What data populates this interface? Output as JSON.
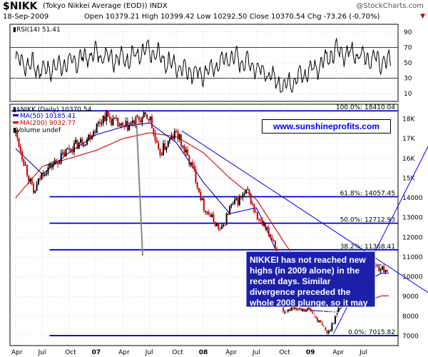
{
  "header": {
    "symbol": "$NIKK",
    "full_name": "(Tokyo Nikkei Average (EOD)) INDX",
    "date": "18-Sep-2009",
    "quote": "Open 10379.21  High 10399.42  Low 10292.50  Close 10370.54  Chg -73.26 (-0.70%)",
    "credit": "@StockCharts.com",
    "change_arrow": "▼"
  },
  "colors": {
    "price_up": "#000000",
    "price_down": "#cc0000",
    "ma50": "#0000cc",
    "ma200": "#cc0000",
    "fib_line": "#0000cc",
    "trend_line": "#0000ff",
    "callout_bg": "#1c20a8"
  },
  "annotations": {
    "website": "www.sunshineprofits.com",
    "callout": "NIKKEI has not reached new highs (in 2009 alone) in the recent days. Similar divergence preceded the whole 2008 plunge, so it may be useful to take it into account also today."
  },
  "chart_data": [
    {
      "type": "line",
      "title": "RSI(14) 51.41",
      "ylim": [
        0,
        100
      ],
      "y_ticks": [
        "90",
        "70",
        "50",
        "30",
        "10"
      ],
      "reference_lines": [
        70,
        30
      ],
      "x_tick_labels": [
        "Apr",
        "Jul",
        "Oct",
        "07",
        "Apr",
        "Jul",
        "Oct",
        "08",
        "Apr",
        "Jul",
        "Oct",
        "09",
        "Apr",
        "Jul"
      ],
      "series": [
        {
          "name": "RSI(14)",
          "x": [
            "2006-04",
            "2006-07",
            "2006-10",
            "2007-01",
            "2007-04",
            "2007-07",
            "2007-10",
            "2008-01",
            "2008-04",
            "2008-07",
            "2008-10",
            "2009-01",
            "2009-04",
            "2009-07",
            "2009-09"
          ],
          "values": [
            55,
            40,
            50,
            62,
            55,
            65,
            45,
            35,
            58,
            45,
            20,
            40,
            65,
            60,
            51
          ]
        }
      ]
    },
    {
      "type": "line",
      "title": "$NIKK (Daily) 10370.54",
      "legend": [
        "MA(50) 10185.41",
        "MA(200) 9032.77",
        "Volume undef"
      ],
      "ylim": [
        6800,
        18600
      ],
      "y_ticks": [
        "18K",
        "17K",
        "16K",
        "15K",
        "14000",
        "13000",
        "12000",
        "11000",
        "10000",
        "9000",
        "8000",
        "7000"
      ],
      "x_tick_labels": [
        "Apr",
        "Jul",
        "Oct",
        "07",
        "Apr",
        "Jul",
        "Oct",
        "08",
        "Apr",
        "Jul",
        "Oct",
        "09",
        "Apr",
        "Jul"
      ],
      "fibonacci_levels": [
        {
          "label": "100.0%: 18410.04",
          "value": 18410.04
        },
        {
          "label": "61.8%: 14057.45",
          "value": 14057.45
        },
        {
          "label": "50.0%: 12712.93",
          "value": 12712.93
        },
        {
          "label": "38.2%: 11368.41",
          "value": 11368.41
        },
        {
          "label": "0.0%: 7015.82",
          "value": 7015.82
        }
      ],
      "series": [
        {
          "name": "$NIKK",
          "x": [
            "2006-04",
            "2006-06",
            "2006-07",
            "2006-09",
            "2006-10",
            "2006-12",
            "2007-02",
            "2007-04",
            "2007-06",
            "2007-07",
            "2007-08",
            "2007-10",
            "2007-12",
            "2008-01",
            "2008-03",
            "2008-04",
            "2008-06",
            "2008-07",
            "2008-09",
            "2008-10",
            "2008-11",
            "2009-01",
            "2009-03",
            "2009-05",
            "2009-07",
            "2009-08",
            "2009-09"
          ],
          "values": [
            17300,
            14200,
            15300,
            16000,
            16500,
            17000,
            18200,
            17500,
            18000,
            18100,
            16200,
            17300,
            15300,
            13600,
            12300,
            13500,
            14300,
            13000,
            11800,
            8000,
            8500,
            8300,
            7100,
            9300,
            9500,
            10600,
            10370
          ]
        },
        {
          "name": "MA(50)",
          "x": [
            "2006-04",
            "2006-07",
            "2006-10",
            "2007-01",
            "2007-04",
            "2007-07",
            "2007-10",
            "2008-01",
            "2008-04",
            "2008-07",
            "2008-10",
            "2009-01",
            "2009-04",
            "2009-07",
            "2009-09"
          ],
          "values": [
            16500,
            15200,
            16300,
            17200,
            17600,
            17800,
            16800,
            14800,
            13200,
            13500,
            10500,
            8300,
            8200,
            9700,
            10185
          ]
        },
        {
          "name": "MA(200)",
          "x": [
            "2006-04",
            "2006-07",
            "2006-10",
            "2007-01",
            "2007-04",
            "2007-07",
            "2007-10",
            "2008-01",
            "2008-04",
            "2008-07",
            "2008-10",
            "2009-01",
            "2009-04",
            "2009-07",
            "2009-09"
          ],
          "values": [
            14000,
            15600,
            16000,
            16400,
            17000,
            17300,
            17100,
            16300,
            15000,
            13900,
            11800,
            9800,
            8700,
            8700,
            9033
          ]
        }
      ]
    }
  ]
}
